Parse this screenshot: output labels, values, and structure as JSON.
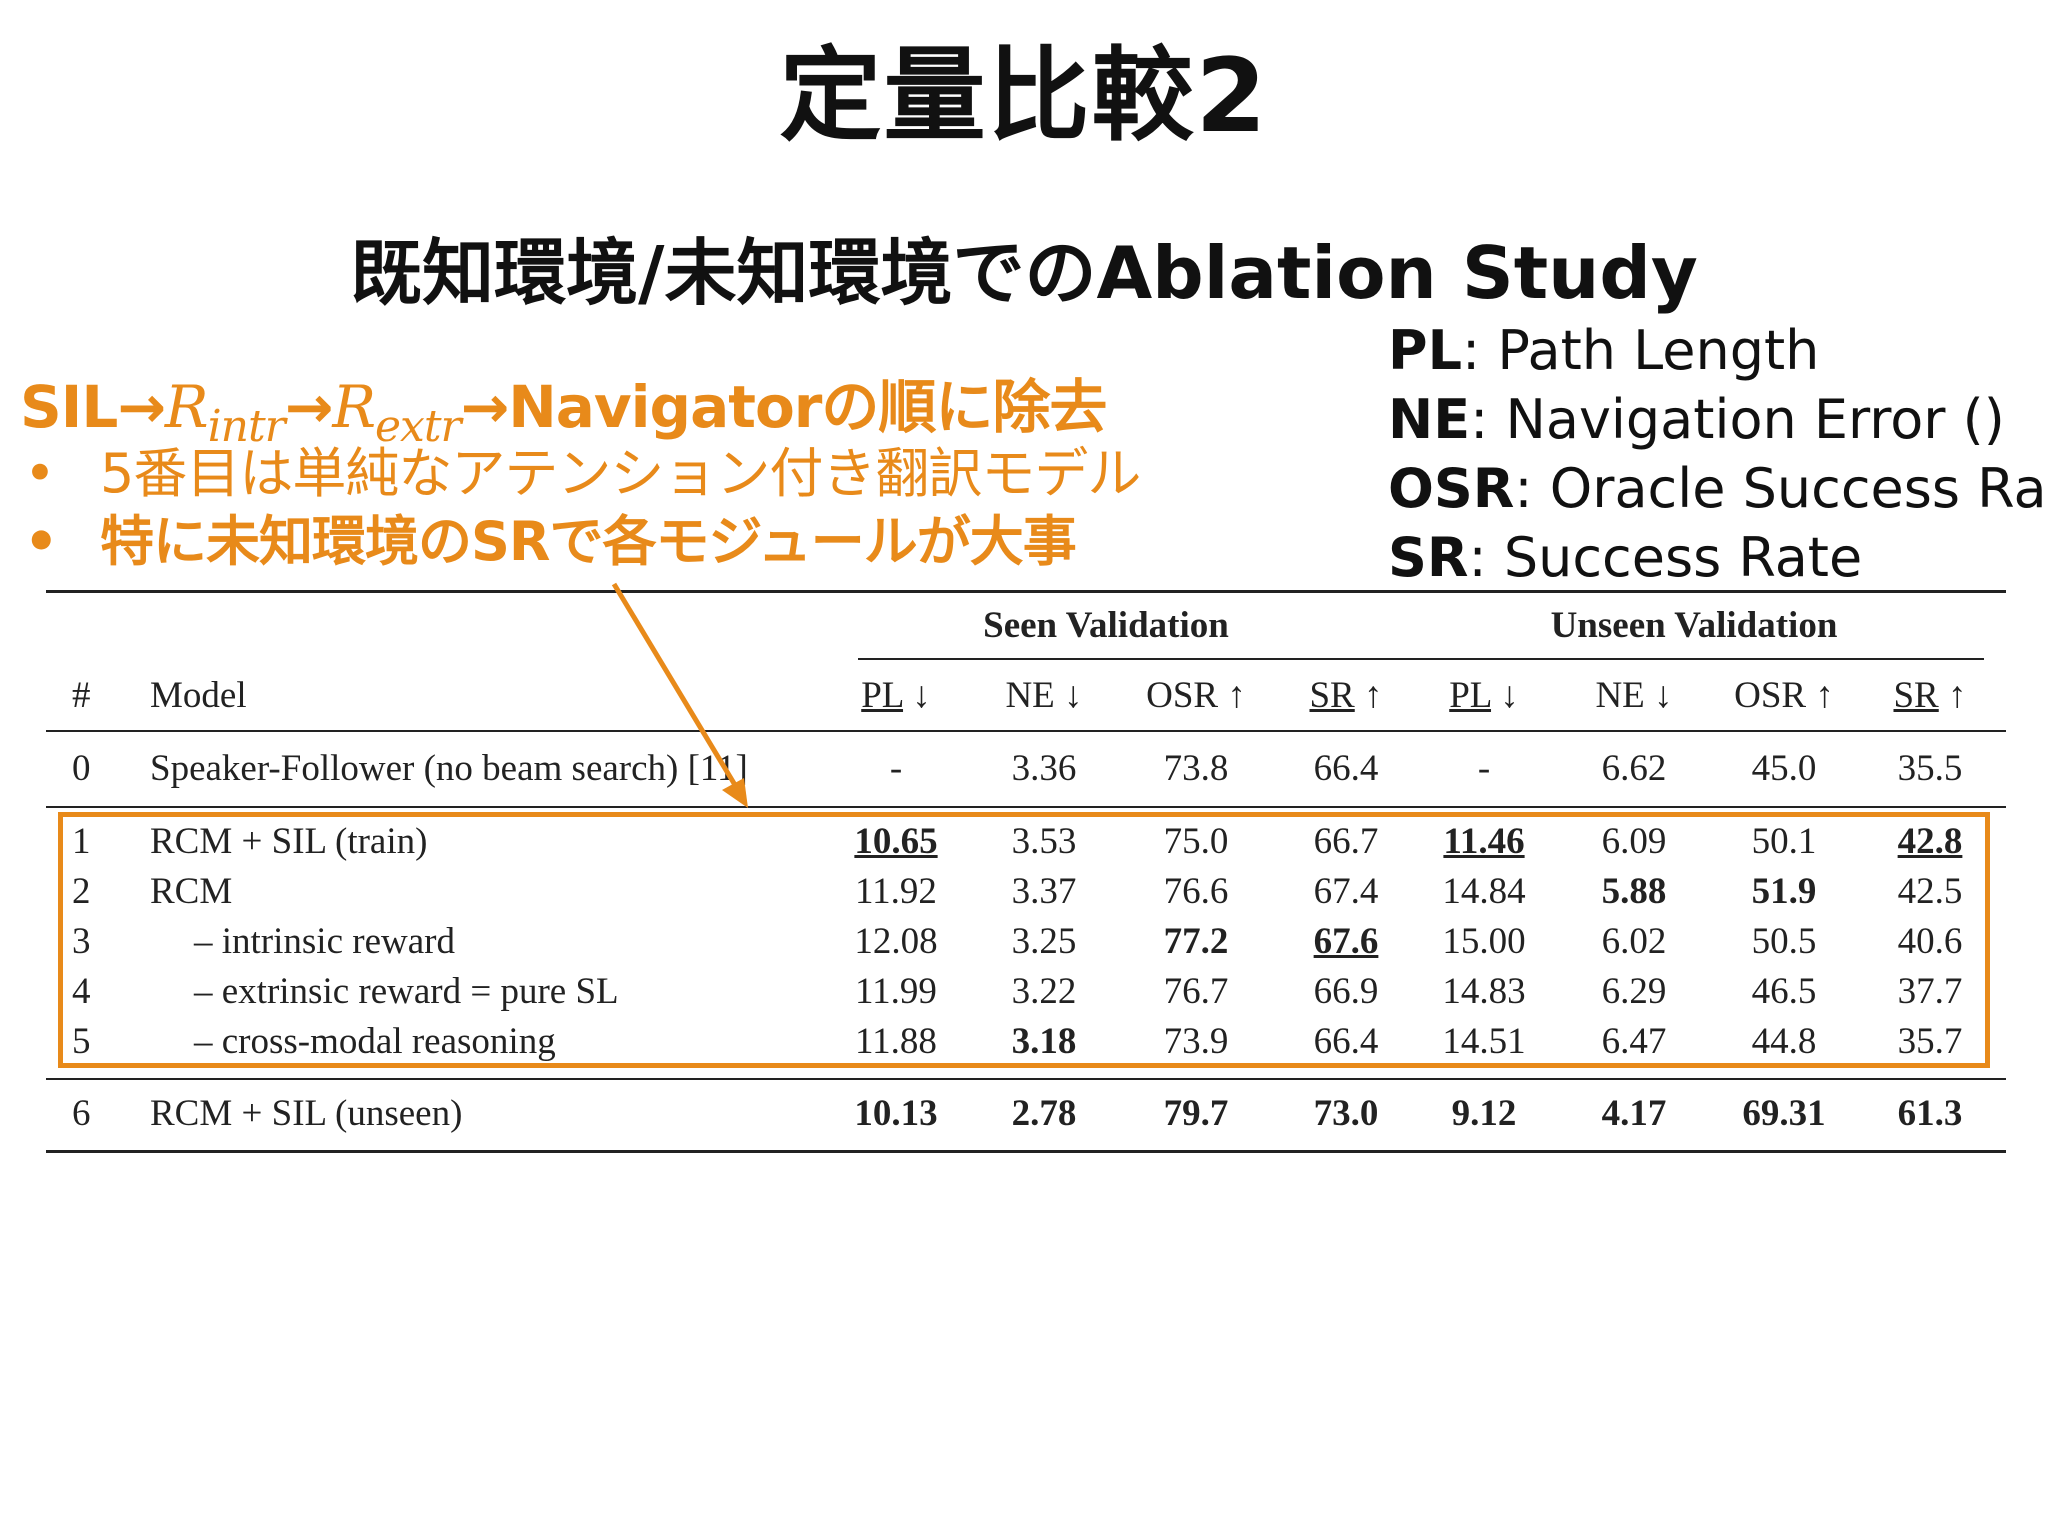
{
  "slide": {
    "title": "定量比較2",
    "subtitle": "既知環境/未知環境でのAblation Study"
  },
  "abbreviations": [
    {
      "key": "PL",
      "desc": ": Path Length"
    },
    {
      "key": "NE",
      "desc": ": Navigation Error ()"
    },
    {
      "key": "OSR",
      "desc": ": Oracle Success Rate"
    },
    {
      "key": "SR",
      "desc": ": Success Rate"
    }
  ],
  "ablation": {
    "sil": "SIL",
    "arrow": "→",
    "r": "R",
    "intr": "intr",
    "extr": "extr",
    "tail": "Navigatorの順に除去",
    "bullets": [
      "5番目は単純なアテンション付き翻訳モデル",
      "特に未知環境のSRで各モジュールが大事"
    ]
  },
  "accent_color": "#e88a1a",
  "table": {
    "groups": [
      "Seen Validation",
      "Unseen Validation"
    ],
    "header_hash": "#",
    "header_model": "Model",
    "columns": [
      "PL ↓",
      "NE ↓",
      "OSR ↑",
      "SR ↑",
      "PL ↓",
      "NE ↓",
      "OSR ↑",
      "SR ↑"
    ],
    "rows": [
      {
        "id": "0",
        "model": "Speaker-Follower (no beam search) [11]",
        "indent": false,
        "cells": [
          "-",
          "3.36",
          "73.8",
          "66.4",
          "-",
          "6.62",
          "45.0",
          "35.5"
        ]
      },
      {
        "id": "1",
        "model": "RCM + SIL (train)",
        "indent": false,
        "cells": [
          "10.65",
          "3.53",
          "75.0",
          "66.7",
          "11.46",
          "6.09",
          "50.1",
          "42.8"
        ]
      },
      {
        "id": "2",
        "model": "RCM",
        "indent": false,
        "cells": [
          "11.92",
          "3.37",
          "76.6",
          "67.4",
          "14.84",
          "5.88",
          "51.9",
          "42.5"
        ]
      },
      {
        "id": "3",
        "model": "– intrinsic reward",
        "indent": true,
        "cells": [
          "12.08",
          "3.25",
          "77.2",
          "67.6",
          "15.00",
          "6.02",
          "50.5",
          "40.6"
        ]
      },
      {
        "id": "4",
        "model": "– extrinsic reward = pure SL",
        "indent": true,
        "cells": [
          "11.99",
          "3.22",
          "76.7",
          "66.9",
          "14.83",
          "6.29",
          "46.5",
          "37.7"
        ]
      },
      {
        "id": "5",
        "model": "– cross-modal reasoning",
        "indent": true,
        "cells": [
          "11.88",
          "3.18",
          "73.9",
          "66.4",
          "14.51",
          "6.47",
          "44.8",
          "35.7"
        ]
      },
      {
        "id": "6",
        "model": "RCM + SIL (unseen)",
        "indent": false,
        "cells": [
          "10.13",
          "2.78",
          "79.7",
          "73.0",
          "9.12",
          "4.17",
          "69.31",
          "61.3"
        ]
      }
    ]
  }
}
